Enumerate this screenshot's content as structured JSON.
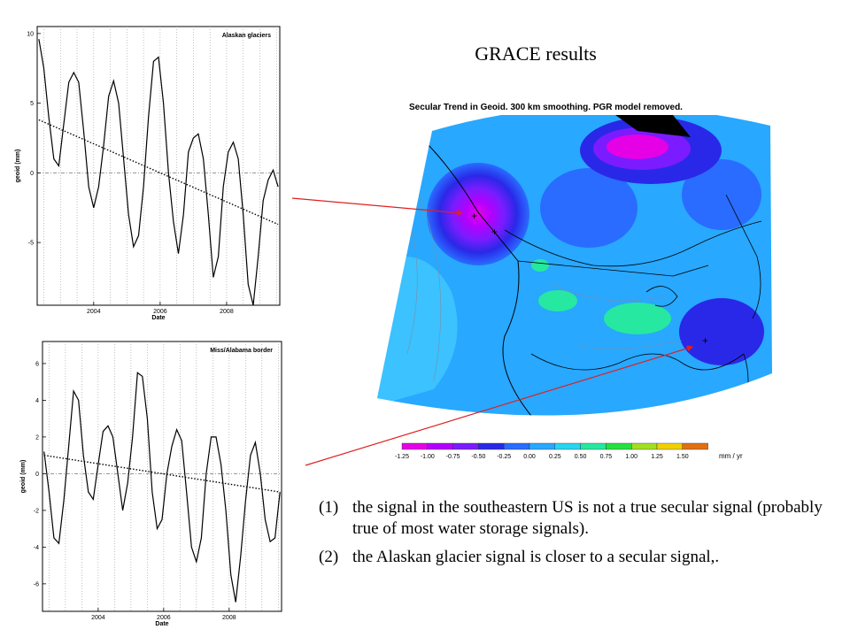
{
  "slide": {
    "title": "GRACE results"
  },
  "map": {
    "title": "Secular Trend in Geoid. 300 km smoothing. PGR model removed.",
    "colorbar": {
      "unit": "mm / yr",
      "labels": [
        "-1.25",
        "-1.00",
        "-0.75",
        "-0.50",
        "-0.25",
        "0.00",
        "0.25",
        "0.50",
        "0.75",
        "1.00",
        "1.25",
        "1.50"
      ],
      "colors": [
        "#e600e6",
        "#b400ff",
        "#7a1cff",
        "#2a28e8",
        "#2a6cff",
        "#28a8ff",
        "#26d6f0",
        "#26e8a0",
        "#26e040",
        "#a0e020",
        "#f0d000",
        "#e07010"
      ]
    }
  },
  "notes": [
    {
      "num": "(1)",
      "text": "the signal in the southeastern US is not a true secular signal (probably true of  most water storage signals)."
    },
    {
      "num": "(2)",
      "text": "the Alaskan glacier signal is closer to a secular signal,."
    }
  ],
  "chart_data": [
    {
      "type": "line",
      "title": "Alaskan glaciers",
      "xlabel": "Date",
      "ylabel": "geoid (mm)",
      "xlim": [
        2002.3,
        2009.6
      ],
      "ylim": [
        -9.5,
        10.5
      ],
      "xticks": [
        "2004",
        "2006",
        "2008"
      ],
      "yticks": [
        "10",
        "5",
        "0",
        "-5"
      ],
      "series": [
        {
          "style": "solid",
          "x": [
            2002.35,
            2002.5,
            2002.65,
            2002.8,
            2002.95,
            2003.1,
            2003.25,
            2003.4,
            2003.55,
            2003.7,
            2003.85,
            2004.0,
            2004.15,
            2004.3,
            2004.45,
            2004.6,
            2004.75,
            2004.9,
            2005.05,
            2005.2,
            2005.35,
            2005.5,
            2005.65,
            2005.8,
            2005.95,
            2006.1,
            2006.25,
            2006.4,
            2006.55,
            2006.7,
            2006.85,
            2007.0,
            2007.15,
            2007.3,
            2007.45,
            2007.6,
            2007.75,
            2007.9,
            2008.05,
            2008.2,
            2008.35,
            2008.5,
            2008.65,
            2008.8,
            2008.95,
            2009.1,
            2009.25,
            2009.4,
            2009.55
          ],
          "y": [
            9.6,
            7.5,
            4.0,
            1.0,
            0.5,
            3.5,
            6.5,
            7.2,
            6.5,
            3.0,
            -1.0,
            -2.5,
            -1.0,
            2.0,
            5.5,
            6.6,
            5.0,
            1.0,
            -3.0,
            -5.3,
            -4.5,
            -1.0,
            4.0,
            8.0,
            8.3,
            5.0,
            0.0,
            -3.5,
            -5.8,
            -3.0,
            1.5,
            2.5,
            2.8,
            1.0,
            -3.0,
            -7.5,
            -6.0,
            -1.0,
            1.5,
            2.2,
            1.0,
            -3.0,
            -8.0,
            -9.5,
            -6.0,
            -2.0,
            -0.5,
            0.2,
            -1.0
          ]
        },
        {
          "style": "dotted",
          "x": [
            2002.35,
            2009.55
          ],
          "y": [
            3.8,
            -3.7
          ]
        }
      ]
    },
    {
      "type": "line",
      "title": "Miss/Alabama border",
      "xlabel": "Date",
      "ylabel": "geoid (mm)",
      "xlim": [
        2002.3,
        2009.6
      ],
      "ylim": [
        -7.5,
        7.2
      ],
      "xticks": [
        "2004",
        "2006",
        "2008"
      ],
      "yticks": [
        "6",
        "4",
        "2",
        "0",
        "-2",
        "-4",
        "-6"
      ],
      "series": [
        {
          "style": "solid",
          "x": [
            2002.35,
            2002.5,
            2002.65,
            2002.8,
            2002.95,
            2003.1,
            2003.25,
            2003.4,
            2003.55,
            2003.7,
            2003.85,
            2004.0,
            2004.15,
            2004.3,
            2004.45,
            2004.6,
            2004.75,
            2004.9,
            2005.05,
            2005.2,
            2005.35,
            2005.5,
            2005.65,
            2005.8,
            2005.95,
            2006.1,
            2006.25,
            2006.4,
            2006.55,
            2006.7,
            2006.85,
            2007.0,
            2007.15,
            2007.3,
            2007.45,
            2007.6,
            2007.75,
            2007.9,
            2008.05,
            2008.2,
            2008.35,
            2008.5,
            2008.65,
            2008.8,
            2008.95,
            2009.1,
            2009.25,
            2009.4,
            2009.55
          ],
          "y": [
            1.2,
            -1.0,
            -3.5,
            -3.8,
            -1.5,
            1.5,
            4.5,
            4.0,
            1.0,
            -1.0,
            -1.4,
            0.5,
            2.3,
            2.6,
            2.0,
            0.0,
            -2.0,
            -0.5,
            2.0,
            5.5,
            5.3,
            3.0,
            -1.0,
            -3.0,
            -2.5,
            0.0,
            1.5,
            2.4,
            1.8,
            -1.0,
            -4.0,
            -4.8,
            -3.5,
            0.0,
            2.0,
            2.0,
            0.5,
            -2.0,
            -5.5,
            -7.0,
            -4.5,
            -1.5,
            1.0,
            1.7,
            0.0,
            -2.5,
            -3.7,
            -3.5,
            -1.0
          ]
        },
        {
          "style": "dotted",
          "x": [
            2002.35,
            2009.55
          ],
          "y": [
            1.0,
            -1.0
          ]
        }
      ]
    }
  ]
}
